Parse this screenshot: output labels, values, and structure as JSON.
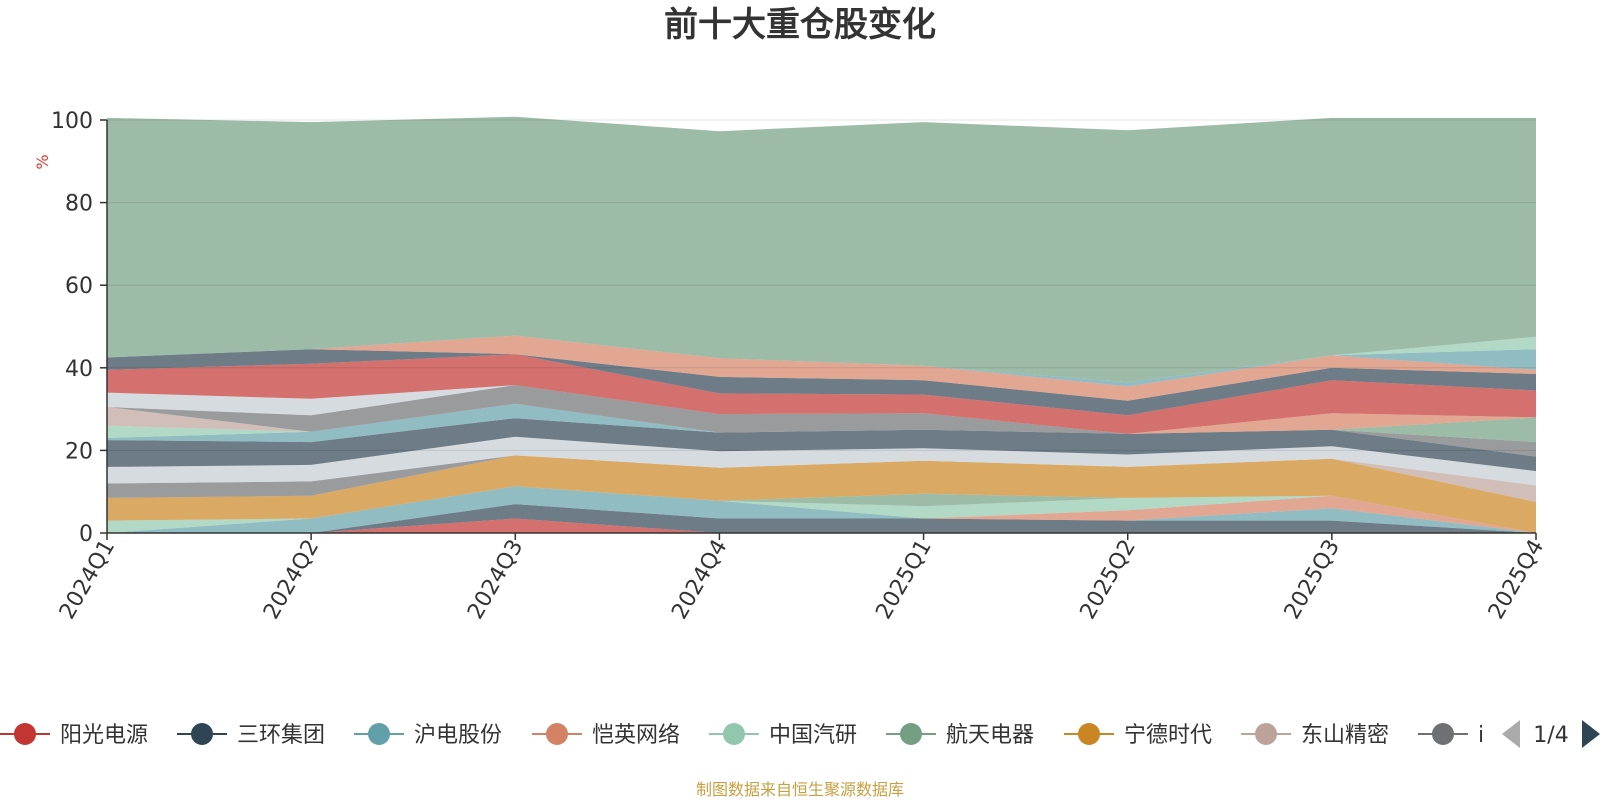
{
  "chart_data": {
    "type": "area",
    "stacked": true,
    "title": "前十大重仓股变化",
    "xlabel": "",
    "ylabel": "%",
    "ylim": [
      0,
      100
    ],
    "yticks": [
      0,
      20,
      40,
      60,
      80,
      100
    ],
    "grid": true,
    "legend_position": "bottom",
    "categories": [
      "2024Q1",
      "2024Q2",
      "2024Q3",
      "2024Q4",
      "2025Q1",
      "2025Q2",
      "2025Q3",
      "2025Q4"
    ],
    "series": [
      {
        "name": "阳光电源",
        "color": "#c23531",
        "values": [
          0,
          0,
          3.5,
          0,
          0,
          0,
          0,
          0
        ]
      },
      {
        "name": "三环集团",
        "color": "#2f4554",
        "values": [
          0,
          0,
          3.5,
          3.5,
          3.5,
          3,
          3,
          0
        ]
      },
      {
        "name": "沪电股份",
        "color": "#61a0a8",
        "values": [
          0,
          3.5,
          4.3,
          4.3,
          0,
          0,
          3,
          0
        ]
      },
      {
        "name": "恺英网络",
        "color": "#d48265",
        "values": [
          0,
          0,
          0,
          0,
          0,
          2.5,
          3,
          0
        ]
      },
      {
        "name": "中国汽研",
        "color": "#91c7ae",
        "values": [
          3,
          0,
          0,
          0,
          3,
          3,
          0,
          0
        ]
      },
      {
        "name": "航天电器",
        "color": "#749f83",
        "values": [
          0,
          0,
          0,
          0,
          3,
          0,
          0,
          0
        ]
      },
      {
        "name": "宁德时代",
        "color": "#ca8622",
        "values": [
          5.5,
          5.5,
          7.5,
          8,
          8,
          7.5,
          9,
          7.5
        ]
      },
      {
        "name": "东山精密",
        "color": "#bda29a",
        "values": [
          0,
          0,
          0,
          0,
          0,
          0,
          0,
          4
        ]
      },
      {
        "name": "",
        "color": "#6e7074",
        "values": [
          3.5,
          3.5,
          0,
          0,
          0,
          0,
          0,
          0
        ]
      },
      {
        "name": "",
        "color": "#c4ccd3",
        "values": [
          4,
          4,
          4.5,
          4,
          3,
          3,
          3,
          3.5
        ]
      },
      {
        "name": "",
        "color": "#2f4554",
        "values": [
          6.5,
          5.5,
          4.5,
          4.5,
          4.5,
          5,
          4,
          3.5
        ]
      },
      {
        "name": "",
        "color": "#61a0a8",
        "values": [
          0.5,
          2.5,
          3.5,
          0,
          0,
          0,
          0,
          0
        ]
      },
      {
        "name": "",
        "color": "#91c7ae",
        "values": [
          3,
          0,
          0,
          0,
          0,
          0,
          0,
          0
        ]
      },
      {
        "name": "",
        "color": "#bda29a",
        "values": [
          4.5,
          0,
          0,
          0,
          0,
          0,
          0,
          0
        ]
      },
      {
        "name": "",
        "color": "#6e7074",
        "values": [
          0,
          4,
          4.5,
          4.5,
          4,
          0,
          0,
          3.5
        ]
      },
      {
        "name": "",
        "color": "#749f83",
        "values": [
          0,
          0,
          0,
          0,
          0,
          0,
          0,
          6
        ]
      },
      {
        "name": "",
        "color": "#d48265",
        "values": [
          0,
          0,
          0,
          0,
          0,
          0,
          4,
          0
        ]
      },
      {
        "name": "",
        "color": "#c4ccd3",
        "values": [
          3.5,
          4,
          0,
          0,
          0,
          0,
          0,
          0
        ]
      },
      {
        "name": "",
        "color": "#c23531",
        "values": [
          5.5,
          8.5,
          7.5,
          5,
          4.5,
          4.5,
          8,
          6.5
        ]
      },
      {
        "name": "",
        "color": "#2f4554",
        "values": [
          3,
          3.5,
          0,
          4,
          3.5,
          3.5,
          3,
          4
        ]
      },
      {
        "name": "",
        "color": "#d48265",
        "values": [
          0,
          0,
          4.5,
          4.5,
          3.5,
          3.5,
          3,
          1
        ]
      },
      {
        "name": "",
        "color": "#61a0a8",
        "values": [
          0,
          0,
          0,
          0,
          0,
          1,
          0,
          5
        ]
      },
      {
        "name": "",
        "color": "#91c7ae",
        "values": [
          0,
          0,
          0,
          0,
          0,
          0,
          0,
          3
        ]
      },
      {
        "name": "",
        "color": "#749f83",
        "values": [
          58,
          55,
          53,
          55,
          59,
          61,
          57.5,
          53
        ]
      }
    ]
  },
  "legend": {
    "items": [
      {
        "name": "阳光电源",
        "color": "#c23531"
      },
      {
        "name": "三环集团",
        "color": "#2f4554"
      },
      {
        "name": "沪电股份",
        "color": "#61a0a8"
      },
      {
        "name": "恺英网络",
        "color": "#d48265"
      },
      {
        "name": "中国汽研",
        "color": "#91c7ae"
      },
      {
        "name": "航天电器",
        "color": "#749f83"
      },
      {
        "name": "宁德时代",
        "color": "#ca8622"
      },
      {
        "name": "东山精密",
        "color": "#bda29a"
      },
      {
        "name": "i",
        "color": "#6e7074"
      }
    ],
    "page": "1/4",
    "prev_icon": "triangle-left-icon",
    "next_icon": "triangle-right-icon"
  },
  "source": "制图数据来自恒生聚源数据库"
}
